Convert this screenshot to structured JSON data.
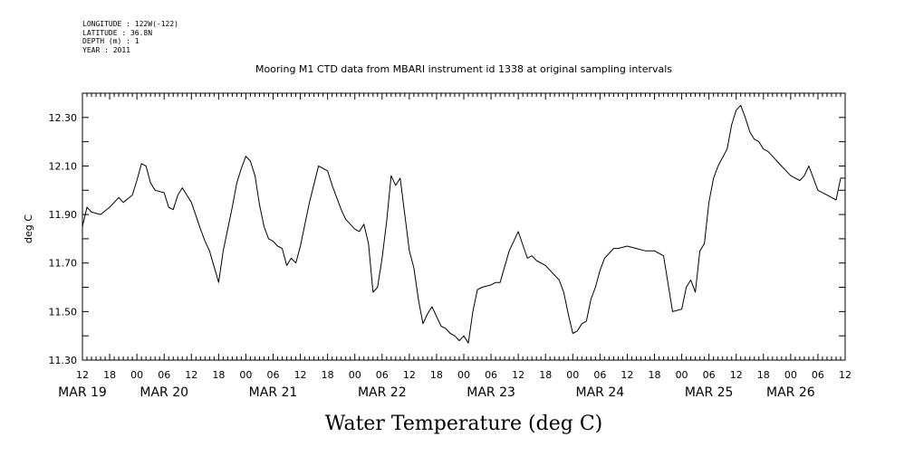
{
  "meta_lines": [
    "LONGITUDE : 122W(-122)",
    "LATITUDE : 36.8N",
    "DEPTH (m) : 1",
    "YEAR : 2011"
  ],
  "chart_data": {
    "type": "line",
    "title": "Mooring M1 CTD data from MBARI instrument id 1338 at original sampling intervals",
    "ylabel": "deg C",
    "xlabel": "Water Temperature (deg C)",
    "ylim": [
      11.3,
      12.4
    ],
    "xlim_hours": [
      0,
      168
    ],
    "y_ticks": [
      "11.30",
      "11.50",
      "11.70",
      "11.90",
      "12.10",
      "12.30"
    ],
    "x_tick_labels": [
      "12",
      "18",
      "00",
      "06",
      "12",
      "18",
      "00",
      "06",
      "12",
      "18",
      "00",
      "06",
      "12",
      "18",
      "00",
      "06",
      "12",
      "18",
      "00",
      "06",
      "12",
      "18",
      "00",
      "06",
      "12",
      "18",
      "00",
      "06",
      "12"
    ],
    "date_labels": [
      "MAR 19",
      "MAR 20",
      "MAR 21",
      "MAR 22",
      "MAR 23",
      "MAR 24",
      "MAR 25",
      "MAR 26"
    ],
    "date_label_hours": [
      0,
      18,
      42,
      66,
      90,
      114,
      138,
      156
    ],
    "series": [
      {
        "x": [
          0,
          1,
          2,
          4,
          6,
          8,
          9,
          11,
          12,
          13,
          14,
          15,
          16,
          18,
          19,
          20,
          21,
          22,
          24,
          26,
          27,
          28,
          30,
          31,
          33,
          34,
          35,
          36,
          37,
          38,
          39,
          40,
          41,
          42,
          43,
          44,
          45,
          46,
          47,
          48,
          50,
          52,
          54,
          55,
          57,
          58,
          59,
          60,
          61,
          62,
          63,
          64,
          65,
          66,
          67,
          68,
          69,
          70,
          72,
          73,
          74,
          75,
          76,
          77,
          78,
          79,
          80,
          81,
          82,
          83,
          84,
          85,
          86,
          87,
          88,
          90,
          91,
          92,
          94,
          96,
          98,
          99,
          100,
          102,
          103,
          105,
          106,
          107,
          108,
          109,
          110,
          111,
          112,
          113,
          114,
          115,
          116,
          117,
          118,
          120,
          122,
          124,
          126,
          127,
          128,
          130,
          132,
          133,
          134,
          135,
          136,
          137,
          138,
          139,
          140,
          142,
          143,
          144,
          145,
          146,
          147,
          148,
          149,
          150,
          151,
          152,
          153,
          154,
          155,
          156,
          157,
          158,
          159,
          160,
          162,
          164,
          166,
          167,
          168
        ],
        "y": [
          11.85,
          11.93,
          11.91,
          11.9,
          11.93,
          11.97,
          11.95,
          11.98,
          12.04,
          12.11,
          12.1,
          12.03,
          12.0,
          11.99,
          11.93,
          11.92,
          11.98,
          12.01,
          11.95,
          11.84,
          11.79,
          11.75,
          11.62,
          11.75,
          11.93,
          12.03,
          12.09,
          12.14,
          12.12,
          12.06,
          11.94,
          11.85,
          11.8,
          11.79,
          11.77,
          11.76,
          11.69,
          11.72,
          11.7,
          11.77,
          11.95,
          12.1,
          12.08,
          12.02,
          11.92,
          11.88,
          11.86,
          11.84,
          11.83,
          11.86,
          11.78,
          11.58,
          11.6,
          11.72,
          11.87,
          12.06,
          12.02,
          12.05,
          11.75,
          11.68,
          11.55,
          11.45,
          11.49,
          11.52,
          11.48,
          11.44,
          11.43,
          11.41,
          11.4,
          11.38,
          11.4,
          11.37,
          11.5,
          11.59,
          11.6,
          11.61,
          11.62,
          11.62,
          11.75,
          11.83,
          11.72,
          11.73,
          11.71,
          11.69,
          11.67,
          11.63,
          11.58,
          11.49,
          11.41,
          11.42,
          11.45,
          11.46,
          11.55,
          11.6,
          11.67,
          11.72,
          11.74,
          11.76,
          11.76,
          11.77,
          11.76,
          11.75,
          11.75,
          11.74,
          11.73,
          11.5,
          11.51,
          11.6,
          11.63,
          11.58,
          11.75,
          11.78,
          11.95,
          12.05,
          12.1,
          12.17,
          12.27,
          12.33,
          12.35,
          12.3,
          12.24,
          12.21,
          12.2,
          12.17,
          12.16,
          12.14,
          12.12,
          12.1,
          12.08,
          12.06,
          12.05,
          12.04,
          12.06,
          12.1,
          12.0,
          11.98,
          11.96,
          12.05,
          12.05
        ]
      }
    ]
  }
}
